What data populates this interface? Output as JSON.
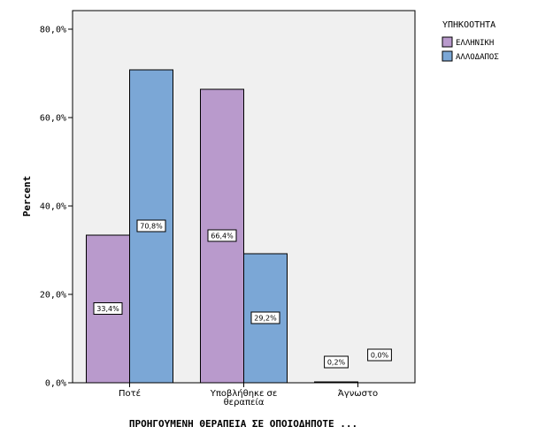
{
  "chart_data": {
    "type": "bar",
    "categories": [
      [
        "Ποτέ"
      ],
      [
        "Υποβλήθηκε σε",
        "θεραπεία"
      ],
      [
        "Άγνωστο"
      ]
    ],
    "series": [
      {
        "name": "ΕΛΛΗΝΙΚΗ",
        "values": [
          33.4,
          66.4,
          0.2
        ],
        "labels": [
          "33,4%",
          "66,4%",
          "0,2%"
        ],
        "color": "#b99acc"
      },
      {
        "name": "ΑΛΛΟΔΑΠΟΣ",
        "values": [
          70.8,
          29.2,
          0.0
        ],
        "labels": [
          "70,8%",
          "29,2%",
          "0,0%"
        ],
        "color": "#7ba7d6"
      }
    ],
    "title": "",
    "xlabel": "ΠΡΟΗΓΟΥΜΕΝΗ ΘΕΡΑΠΕΙΑ ΣΕ ΟΠΟΙΟΔΗΠΟΤΕ ...",
    "ylabel": "Percent",
    "ylim": [
      0,
      80
    ],
    "yticks": [
      0,
      20,
      40,
      60,
      80
    ],
    "ytick_labels": [
      "0,0%",
      "20,0%",
      "40,0%",
      "60,0%",
      "80,0%"
    ],
    "legend": {
      "title": "ΥΠΗΚΟΟΤΗΤΑ",
      "position": "top-right"
    },
    "grid": false,
    "plot_background": "#f0f0f0"
  }
}
